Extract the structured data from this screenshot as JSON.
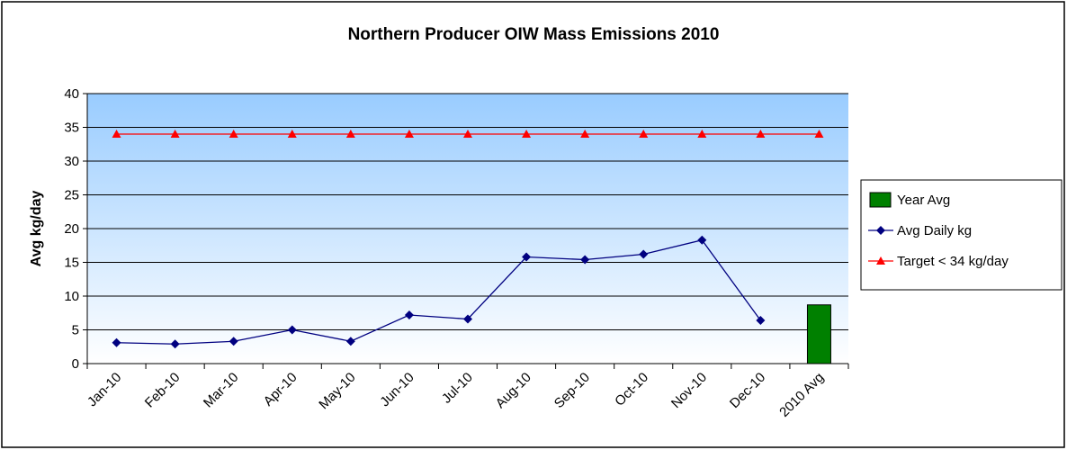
{
  "chart_data": {
    "type": "line",
    "title": "Northern Producer OIW Mass Emissions 2010",
    "y_label": "Avg kg/day",
    "categories": [
      "Jan-10",
      "Feb-10",
      "Mar-10",
      "Apr-10",
      "May-10",
      "Jun-10",
      "Jul-10",
      "Aug-10",
      "Sep-10",
      "Oct-10",
      "Nov-10",
      "Dec-10",
      "2010 Avg"
    ],
    "series": [
      {
        "name": "Year Avg",
        "type": "bar",
        "color": "#008000",
        "values": [
          null,
          null,
          null,
          null,
          null,
          null,
          null,
          null,
          null,
          null,
          null,
          null,
          8.7
        ]
      },
      {
        "name": "Avg Daily kg",
        "type": "line",
        "marker": "diamond",
        "color": "#000080",
        "values": [
          3.1,
          2.9,
          3.3,
          5.0,
          3.3,
          7.2,
          6.6,
          15.8,
          15.4,
          16.2,
          18.3,
          6.4,
          null
        ]
      },
      {
        "name": "Target < 34 kg/day",
        "type": "line",
        "marker": "triangle",
        "color": "#ff0000",
        "values": [
          34,
          34,
          34,
          34,
          34,
          34,
          34,
          34,
          34,
          34,
          34,
          34,
          34
        ]
      }
    ],
    "ylim": [
      0,
      40
    ],
    "yticks": [
      0,
      5,
      10,
      15,
      20,
      25,
      30,
      35,
      40
    ],
    "grid": true,
    "legend": "right"
  }
}
